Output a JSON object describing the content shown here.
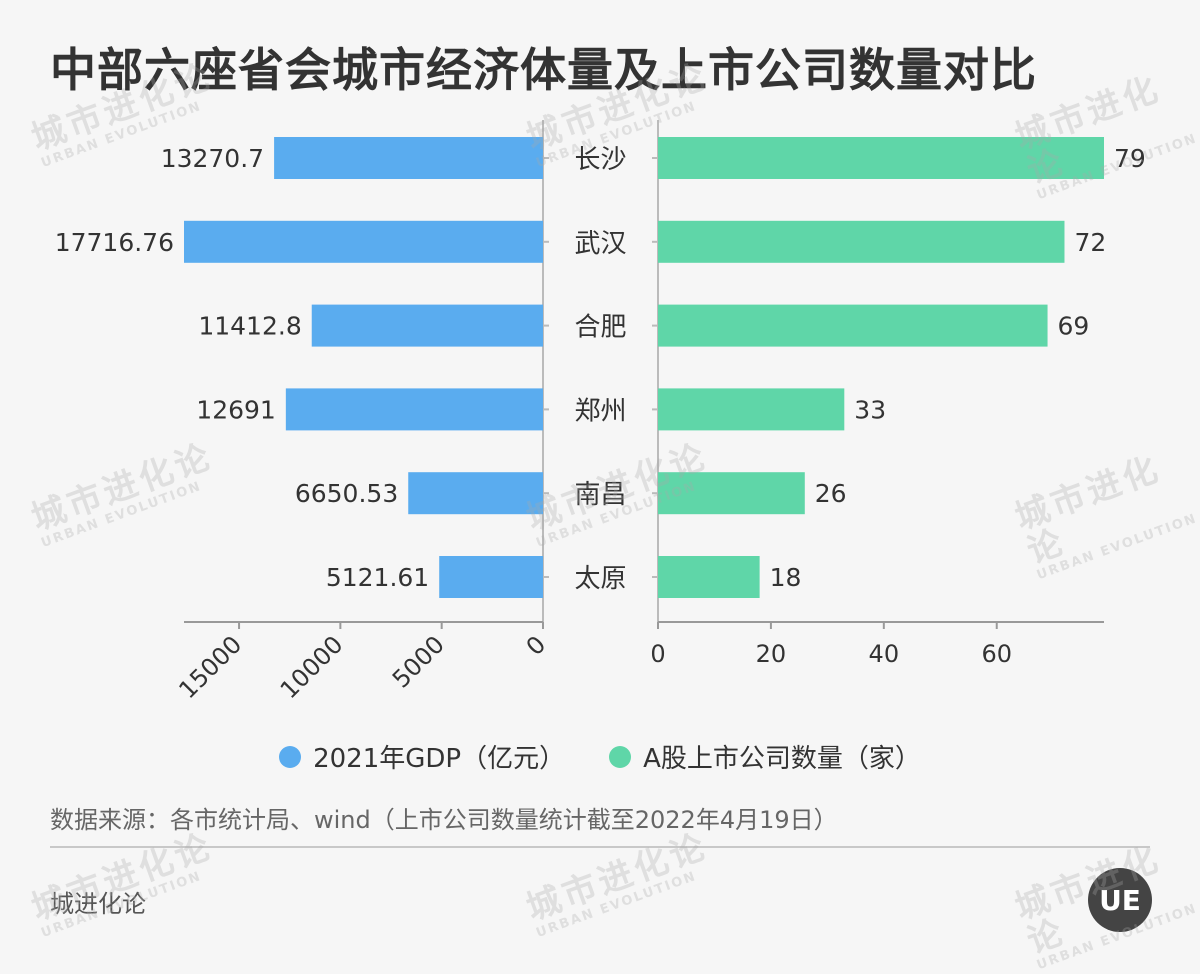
{
  "title": "中部六座省会城市经济体量及上市公司数量对比",
  "chart_data": {
    "type": "bar",
    "categories": [
      "长沙",
      "武汉",
      "合肥",
      "郑州",
      "南昌",
      "太原"
    ],
    "series": [
      {
        "name": "2021年GDP（亿元）",
        "color": "#5aacef",
        "values": [
          13270.7,
          17716.76,
          11412.8,
          12691,
          6650.53,
          5121.61
        ],
        "labels": [
          "13270.7",
          "17716.76",
          "11412.8",
          "12691",
          "6650.53",
          "5121.61"
        ],
        "ticks": [
          15000,
          10000,
          5000,
          0
        ],
        "xlim": [
          0,
          17716.76
        ]
      },
      {
        "name": "A股上市公司数量（家）",
        "color": "#5fd6a8",
        "values": [
          79,
          72,
          69,
          33,
          26,
          18
        ],
        "labels": [
          "79",
          "72",
          "69",
          "33",
          "26",
          "18"
        ],
        "ticks": [
          0,
          20,
          40,
          60
        ],
        "xlim": [
          0,
          79
        ]
      }
    ]
  },
  "legend": {
    "gdp_label": "2021年GDP（亿元）",
    "companies_label": "A股上市公司数量（家）"
  },
  "source": "数据来源：各市统计局、wind（上市公司数量统计截至2022年4月19日）",
  "brand": "城进化论",
  "watermark": {
    "cn": "城市进化论",
    "en": "URBAN EVOLUTION"
  },
  "logo_text": "UE"
}
